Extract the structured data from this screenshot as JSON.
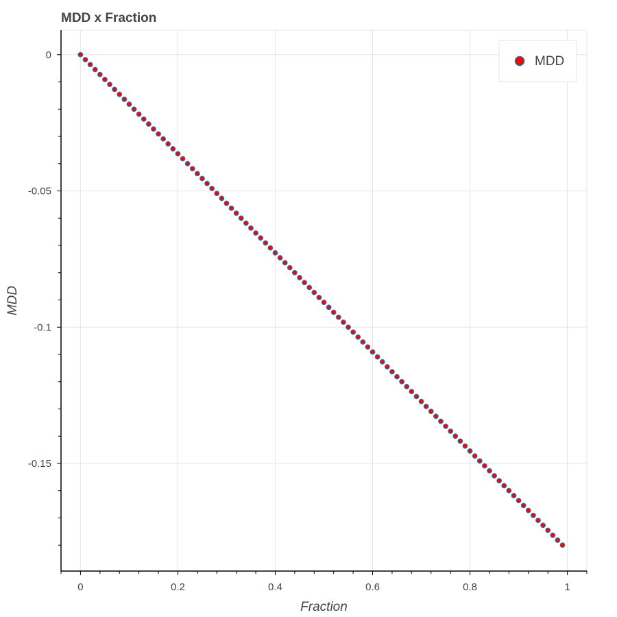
{
  "chart_data": {
    "type": "scatter",
    "title": "MDD x Fraction",
    "xlabel": "Fraction",
    "ylabel": "MDD",
    "xlim": [
      -0.04,
      1.04
    ],
    "ylim": [
      -0.1895,
      0.009
    ],
    "x_ticks": [
      {
        "value": 0,
        "label": "0"
      },
      {
        "value": 0.2,
        "label": "0.2"
      },
      {
        "value": 0.4,
        "label": "0.4"
      },
      {
        "value": 0.6,
        "label": "0.6"
      },
      {
        "value": 0.8,
        "label": "0.8"
      },
      {
        "value": 1,
        "label": "1"
      }
    ],
    "y_ticks": [
      {
        "value": 0,
        "label": "0"
      },
      {
        "value": -0.05,
        "label": "-0.05"
      },
      {
        "value": -0.1,
        "label": "-0.1"
      },
      {
        "value": -0.15,
        "label": "-0.15"
      }
    ],
    "grid": true,
    "legend": {
      "placement": "top-right"
    },
    "series": [
      {
        "name": "MDD",
        "marker": "circle",
        "fill_color": "#ff0000",
        "line_color": "#1f77b4",
        "x_start": 0,
        "x_step": 0.01,
        "count": 100,
        "slope": -0.1818,
        "intercept": 0
      }
    ]
  }
}
